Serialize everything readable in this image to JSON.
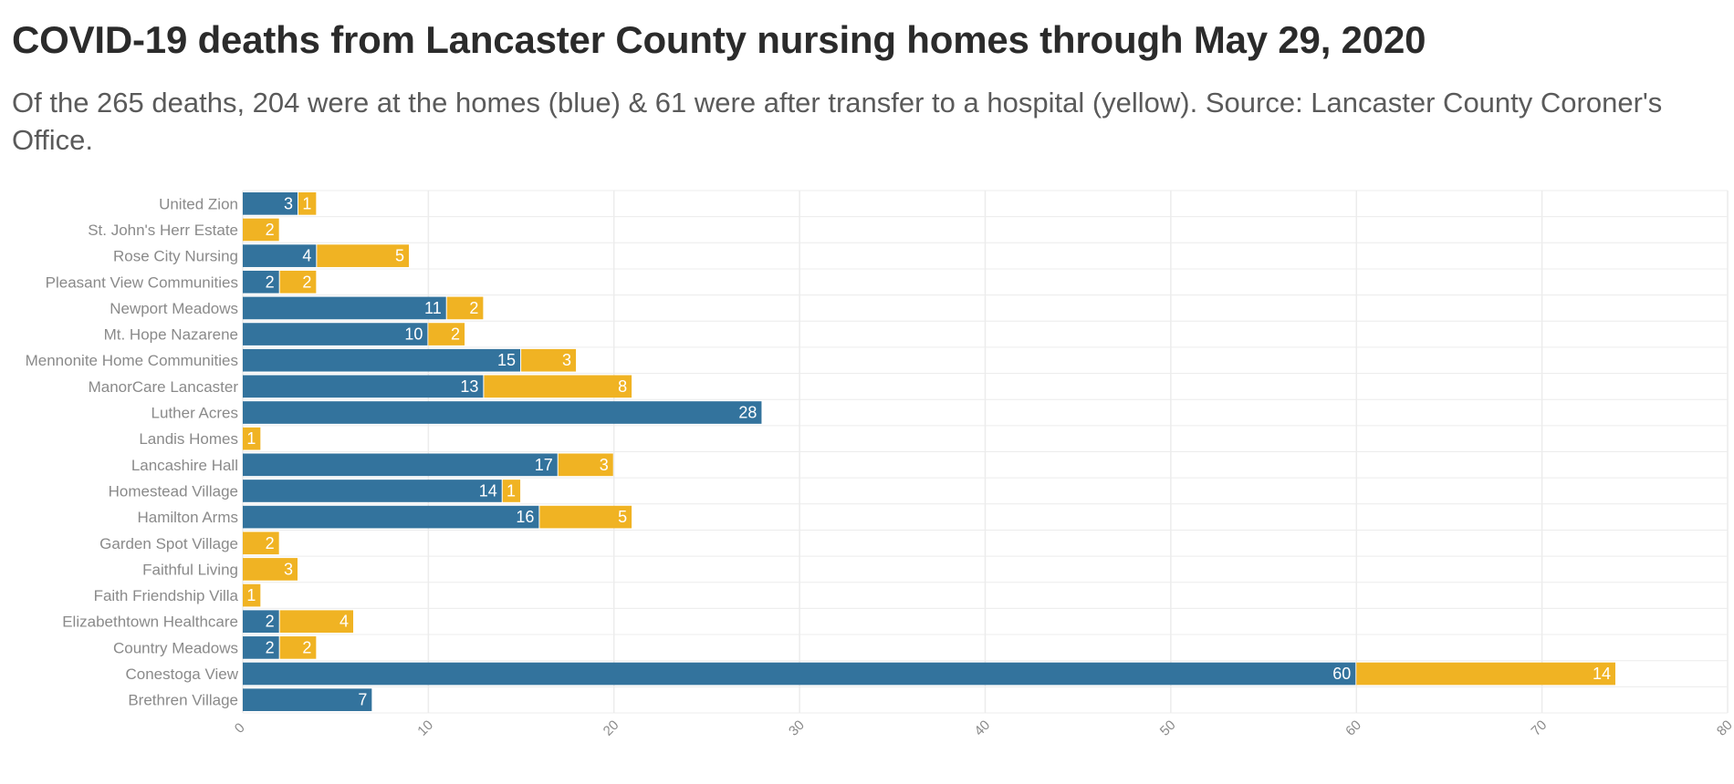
{
  "title": "COVID-19 deaths from Lancaster County nursing homes through May 29, 2020",
  "subtitle": "Of the 265 deaths, 204 were at the homes (blue) & 61 were after transfer to a hospital (yellow). Source: Lancaster County Coroner's Office.",
  "colors": {
    "blue": "#33739d",
    "yellow": "#f0b323",
    "grid": "#ececec"
  },
  "chart_data": {
    "type": "bar",
    "orientation": "horizontal",
    "stacked": true,
    "title": "COVID-19 deaths from Lancaster County nursing homes through May 29, 2020",
    "xlabel": "",
    "ylabel": "",
    "xlim": [
      0,
      80
    ],
    "x_ticks": [
      0,
      10,
      20,
      30,
      40,
      50,
      60,
      70,
      80
    ],
    "grid": true,
    "categories": [
      "United Zion",
      "St. John's Herr Estate",
      "Rose City Nursing",
      "Pleasant View Communities",
      "Newport Meadows",
      "Mt. Hope Nazarene",
      "Mennonite Home Communities",
      "ManorCare Lancaster",
      "Luther Acres",
      "Landis Homes",
      "Lancashire Hall",
      "Homestead Village",
      "Hamilton Arms",
      "Garden Spot Village",
      "Faithful Living",
      "Faith Friendship Villa",
      "Elizabethtown Healthcare",
      "Country Meadows",
      "Conestoga View",
      "Brethren Village"
    ],
    "series": [
      {
        "name": "Deaths at the homes",
        "color": "#33739d",
        "values": [
          3,
          0,
          4,
          2,
          11,
          10,
          15,
          13,
          28,
          0,
          17,
          14,
          16,
          0,
          0,
          0,
          2,
          2,
          60,
          7
        ]
      },
      {
        "name": "Deaths after transfer to a hospital",
        "color": "#f0b323",
        "values": [
          1,
          2,
          5,
          2,
          2,
          2,
          3,
          8,
          0,
          1,
          3,
          1,
          5,
          2,
          3,
          1,
          4,
          2,
          14,
          0
        ]
      }
    ]
  }
}
